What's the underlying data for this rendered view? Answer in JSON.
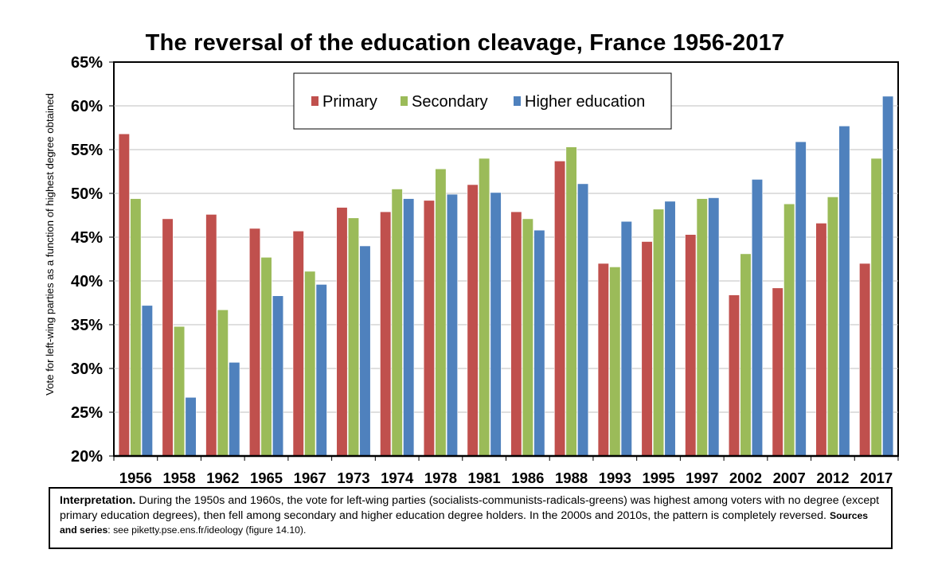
{
  "chart_data": {
    "type": "bar",
    "title": "The reversal of the education cleavage, France 1956-2017",
    "ylabel": "Vote for left-wing parties as a function of highest degree obtained",
    "xlabel": "",
    "ylim": [
      0.2,
      0.65
    ],
    "yticks": [
      "20%",
      "25%",
      "30%",
      "35%",
      "40%",
      "45%",
      "50%",
      "55%",
      "60%",
      "65%"
    ],
    "legend_position": "top-center",
    "categories": [
      "1956",
      "1958",
      "1962",
      "1965",
      "1967",
      "1973",
      "1974",
      "1978",
      "1981",
      "1986",
      "1988",
      "1993",
      "1995",
      "1997",
      "2002",
      "2007",
      "2012",
      "2017"
    ],
    "series": [
      {
        "name": "Primary",
        "color": "#c0504d",
        "values": [
          0.568,
          0.471,
          0.476,
          0.46,
          0.457,
          0.484,
          0.479,
          0.492,
          0.51,
          0.479,
          0.537,
          0.42,
          0.445,
          0.453,
          0.384,
          0.392,
          0.466,
          0.42
        ]
      },
      {
        "name": "Secondary",
        "color": "#9bbb59",
        "values": [
          0.494,
          0.348,
          0.367,
          0.427,
          0.411,
          0.472,
          0.505,
          0.528,
          0.54,
          0.471,
          0.553,
          0.416,
          0.482,
          0.494,
          0.431,
          0.488,
          0.496,
          0.54
        ]
      },
      {
        "name": "Higher education",
        "color": "#4f81bd",
        "values": [
          0.372,
          0.267,
          0.307,
          0.383,
          0.396,
          0.44,
          0.494,
          0.499,
          0.501,
          0.458,
          0.511,
          0.468,
          0.491,
          0.495,
          0.516,
          0.559,
          0.577,
          0.611
        ]
      }
    ]
  },
  "note": {
    "label": "Interpretation.",
    "text": " During the 1950s and 1960s, the vote for left-wing parties (socialists-communists-radicals-greens) was highest among voters with no degree (except primary education degrees), then fell among secondary and higher education degree holders. In the 2000s and 2010s, the pattern is completely reversed. ",
    "sources_label": "Sources and series",
    "sources_text": ": see piketty.pse.ens.fr/ideology (figure 14.10)."
  }
}
